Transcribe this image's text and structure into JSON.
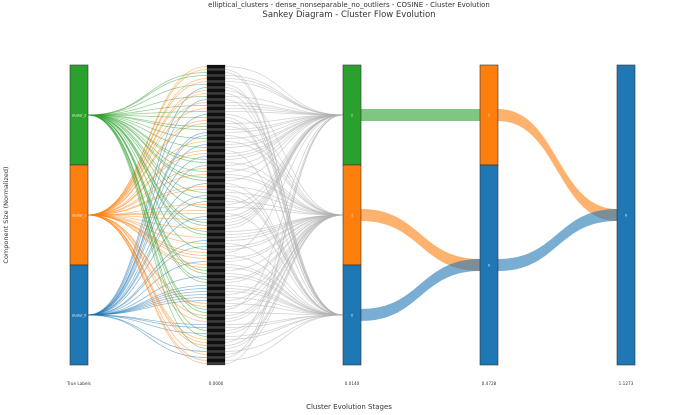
{
  "chart_data": {
    "type": "sankey",
    "suptitle": "elliptical_clusters - dense_nonseparable_no_outliers - COSINE - Cluster Evolution",
    "title": "Sankey Diagram - Cluster Flow Evolution",
    "xlabel": "Cluster Evolution Stages",
    "ylabel": "Component Size (Normalized)",
    "colors": {
      "green": "#2ca02c",
      "orange": "#ff7f0e",
      "blue": "#1f77b4",
      "gray": "#b0b0b0"
    },
    "stages": [
      "True Labels",
      "0.0000",
      "0.0140",
      "0.4728",
      "1.1273"
    ],
    "nodes": [
      {
        "stage": 0,
        "label": "cluster_2",
        "start": 0.0,
        "end": 0.3333,
        "color": "#2ca02c"
      },
      {
        "stage": 0,
        "label": "cluster_1",
        "start": 0.3333,
        "end": 0.6667,
        "color": "#ff7f0e"
      },
      {
        "stage": 0,
        "label": "cluster_0",
        "start": 0.6667,
        "end": 1.0,
        "color": "#1f77b4"
      },
      {
        "stage": 2,
        "label": "2",
        "start": 0.0,
        "end": 0.3333,
        "color": "#2ca02c"
      },
      {
        "stage": 2,
        "label": "1",
        "start": 0.3333,
        "end": 0.6667,
        "color": "#ff7f0e"
      },
      {
        "stage": 2,
        "label": "0",
        "start": 0.6667,
        "end": 1.0,
        "color": "#1f77b4"
      },
      {
        "stage": 3,
        "label": "1",
        "start": 0.0,
        "end": 0.3333,
        "color": "#ff7f0e"
      },
      {
        "stage": 3,
        "label": "0",
        "start": 0.3333,
        "end": 1.0,
        "color": "#1f77b4"
      },
      {
        "stage": 4,
        "label": "0",
        "start": 0.0,
        "end": 1.0,
        "color": "#1f77b4"
      }
    ],
    "singleton_stage": {
      "stage": 1,
      "count": 100
    },
    "flows": [
      {
        "from_stage": 2,
        "from": "2",
        "to_stage": 3,
        "to": "1",
        "value": 0.3333,
        "color": "#2ca02c"
      },
      {
        "from_stage": 2,
        "from": "1",
        "to_stage": 3,
        "to": "0",
        "value": 0.3333,
        "color": "#ff7f0e"
      },
      {
        "from_stage": 2,
        "from": "0",
        "to_stage": 3,
        "to": "0",
        "value": 0.3333,
        "color": "#1f77b4"
      },
      {
        "from_stage": 3,
        "from": "1",
        "to_stage": 4,
        "to": "0",
        "value": 0.3333,
        "color": "#ff7f0e"
      },
      {
        "from_stage": 3,
        "from": "0",
        "to_stage": 4,
        "to": "0",
        "value": 0.6667,
        "color": "#1f77b4"
      }
    ]
  }
}
